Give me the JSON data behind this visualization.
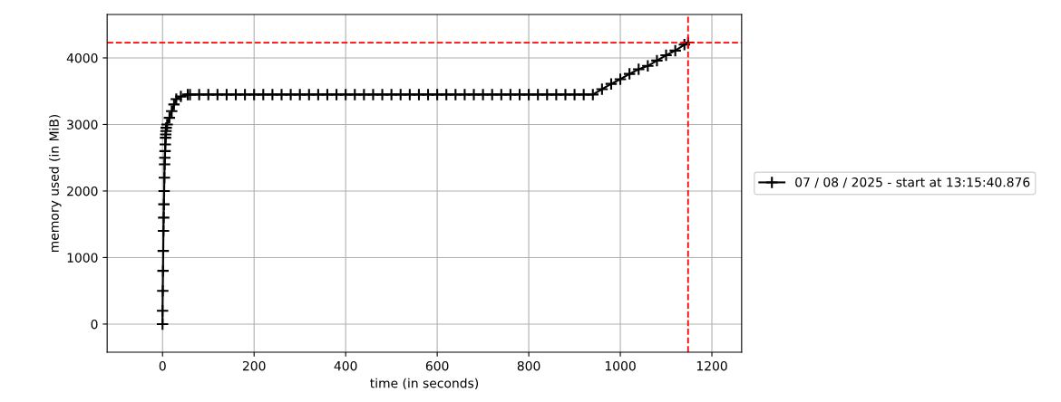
{
  "chart_data": {
    "type": "line",
    "xlabel": "time (in seconds)",
    "ylabel": "memory used (in MiB)",
    "xlim": [
      -121,
      1265
    ],
    "ylim": [
      -422,
      4653
    ],
    "xticks": [
      0,
      200,
      400,
      600,
      800,
      1000,
      1200
    ],
    "yticks": [
      0,
      1000,
      2000,
      3000,
      4000
    ],
    "grid": true,
    "legend": "right",
    "marker": "cross",
    "line_style": "solid",
    "series": [
      {
        "name": "07 / 08 / 2025 - start at 13:15:40.876",
        "color": "#000000",
        "x": [
          0,
          0,
          0.5,
          1,
          1.5,
          2,
          2.5,
          3,
          3.5,
          4,
          4.5,
          5,
          5.5,
          6,
          6.5,
          7,
          7.5,
          8,
          10,
          15,
          20,
          25,
          30,
          40,
          55,
          60,
          80,
          100,
          120,
          140,
          160,
          180,
          200,
          220,
          240,
          260,
          280,
          300,
          320,
          340,
          360,
          380,
          400,
          420,
          440,
          460,
          480,
          500,
          520,
          540,
          560,
          580,
          600,
          620,
          640,
          660,
          680,
          700,
          720,
          740,
          760,
          780,
          800,
          820,
          840,
          860,
          880,
          900,
          920,
          940,
          960,
          980,
          1000,
          1020,
          1040,
          1060,
          1080,
          1100,
          1120,
          1140,
          1148
        ],
        "values": [
          0,
          200,
          500,
          800,
          1100,
          1400,
          1600,
          1800,
          2000,
          2200,
          2400,
          2500,
          2600,
          2700,
          2800,
          2850,
          2900,
          2950,
          3000,
          3100,
          3200,
          3300,
          3380,
          3420,
          3450,
          3450,
          3450,
          3450,
          3450,
          3450,
          3450,
          3450,
          3450,
          3450,
          3450,
          3450,
          3450,
          3450,
          3450,
          3450,
          3450,
          3450,
          3450,
          3450,
          3450,
          3450,
          3450,
          3450,
          3450,
          3450,
          3450,
          3450,
          3450,
          3450,
          3450,
          3450,
          3450,
          3450,
          3450,
          3450,
          3450,
          3450,
          3450,
          3450,
          3450,
          3450,
          3450,
          3450,
          3450,
          3450,
          3530,
          3610,
          3680,
          3760,
          3830,
          3880,
          3960,
          4040,
          4110,
          4200,
          4230
        ]
      }
    ],
    "ref_lines": [
      {
        "axis": "y",
        "value": 4230,
        "color": "#ff0000",
        "line_style": "dashed"
      },
      {
        "axis": "x",
        "value": 1148,
        "color": "#ff0000",
        "line_style": "dashed"
      }
    ]
  }
}
